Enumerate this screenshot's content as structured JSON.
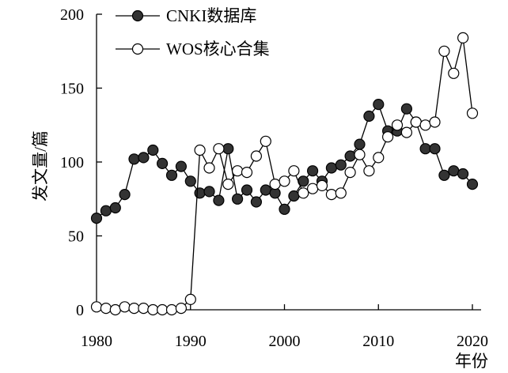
{
  "chart_data": {
    "type": "line",
    "title": "",
    "xlabel": "年份",
    "ylabel": "发文量/篇",
    "xlim": [
      1980,
      2020
    ],
    "ylim": [
      0,
      200
    ],
    "xticks": [
      "1980",
      "1990",
      "2000",
      "2010",
      "2020"
    ],
    "yticks": [
      "0",
      "50",
      "100",
      "150",
      "200"
    ],
    "grid": false,
    "legend_position": "top-left",
    "x": [
      1980,
      1981,
      1982,
      1983,
      1984,
      1985,
      1986,
      1987,
      1988,
      1989,
      1990,
      1991,
      1992,
      1993,
      1994,
      1995,
      1996,
      1997,
      1998,
      1999,
      2000,
      2001,
      2002,
      2003,
      2004,
      2005,
      2006,
      2007,
      2008,
      2009,
      2010,
      2011,
      2012,
      2013,
      2014,
      2015,
      2016,
      2017,
      2018,
      2019,
      2020
    ],
    "series": [
      {
        "name": "CNKI数据库",
        "marker": "filled-circle",
        "color": "#333333",
        "values": [
          62,
          67,
          69,
          78,
          102,
          103,
          108,
          99,
          91,
          97,
          87,
          79,
          80,
          74,
          109,
          75,
          81,
          73,
          81,
          79,
          68,
          77,
          87,
          94,
          87,
          96,
          98,
          104,
          112,
          131,
          139,
          121,
          121,
          136,
          127,
          109,
          109,
          91,
          94,
          92,
          85
        ]
      },
      {
        "name": "WOS核心合集",
        "marker": "open-circle",
        "color": "#ffffff",
        "values": [
          2,
          1,
          0,
          2,
          1,
          1,
          0,
          0,
          0,
          1,
          7,
          108,
          96,
          109,
          85,
          94,
          93,
          104,
          114,
          85,
          87,
          94,
          79,
          82,
          84,
          78,
          79,
          93,
          105,
          94,
          103,
          117,
          125,
          120,
          127,
          125,
          127,
          175,
          160,
          184,
          133
        ]
      }
    ]
  }
}
